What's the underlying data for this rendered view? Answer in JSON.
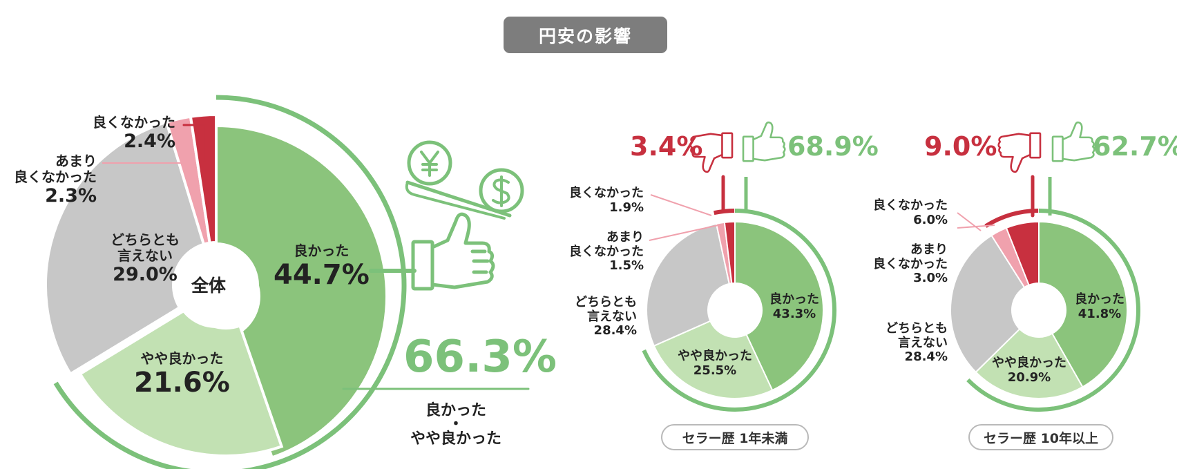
{
  "title": "円安の影響",
  "colors": {
    "good": "#8bc47c",
    "somewhat_good": "#c2e1b3",
    "neither": "#c7c7c7",
    "somewhat_bad": "#f0a1ad",
    "bad": "#c8303f",
    "accent_green": "#7cc17a",
    "accent_red": "#c7303f"
  },
  "labels": {
    "overall_center": "全体",
    "good": "良かった",
    "somewhat_good": "やや良かった",
    "neither_1": "どちらとも",
    "neither_2": "言えない",
    "somewhat_bad_1": "あまり",
    "somewhat_bad_2": "良くなかった",
    "bad": "良くなかった",
    "combined_1": "良かった",
    "combined_dot": "・",
    "combined_2": "やや良かった"
  },
  "summary": {
    "overall_positive": "66.3%",
    "under1_negative": "3.4%",
    "under1_positive": "68.9%",
    "over10_negative": "9.0%",
    "over10_positive": "62.7%"
  },
  "groups": {
    "under1": "セラー歴 1年未満",
    "over10": "セラー歴 10年以上"
  },
  "icons": [
    "thumbs-up-icon",
    "thumbs-down-icon",
    "yen-coin-icon",
    "dollar-coin-icon",
    "scale-icon"
  ],
  "chart_data": [
    {
      "type": "pie",
      "name": "全体",
      "categories": [
        "良かった",
        "やや良かった",
        "どちらとも言えない",
        "あまり良くなかった",
        "良くなかった"
      ],
      "values": [
        44.7,
        21.6,
        29.0,
        2.3,
        2.4
      ],
      "value_labels": [
        "44.7%",
        "21.6%",
        "29.0%",
        "2.3%",
        "2.4%"
      ]
    },
    {
      "type": "pie",
      "name": "セラー歴 1年未満",
      "categories": [
        "良かった",
        "やや良かった",
        "どちらとも言えない",
        "あまり良くなかった",
        "良くなかった"
      ],
      "values": [
        43.3,
        25.5,
        28.4,
        1.5,
        1.9
      ],
      "value_labels": [
        "43.3%",
        "25.5%",
        "28.4%",
        "1.5%",
        "1.9%"
      ]
    },
    {
      "type": "pie",
      "name": "セラー歴 10年以上",
      "categories": [
        "良かった",
        "やや良かった",
        "どちらとも言えない",
        "あまり良くなかった",
        "良くなかった"
      ],
      "values": [
        41.8,
        20.9,
        28.4,
        3.0,
        6.0
      ],
      "value_labels": [
        "41.8%",
        "20.9%",
        "28.4%",
        "3.0%",
        "6.0%"
      ]
    }
  ]
}
